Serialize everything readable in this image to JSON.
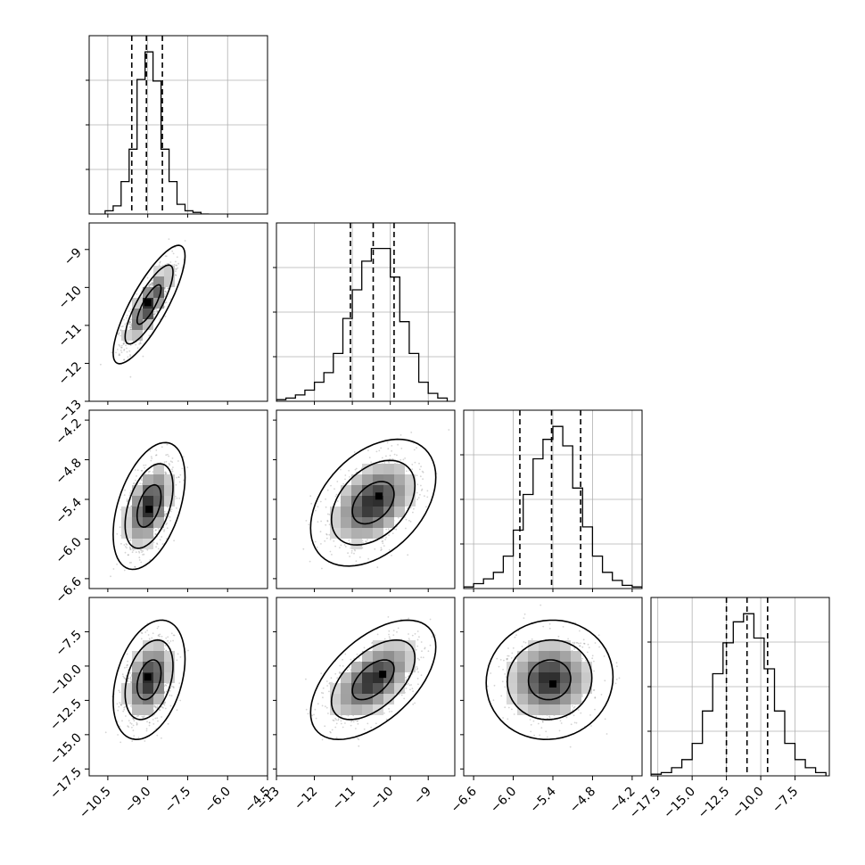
{
  "chart_data": {
    "type": "corner",
    "n_params": 4,
    "grid": true,
    "quantiles": [
      0.16,
      0.5,
      0.84
    ],
    "colors": {
      "line": "#000000",
      "grid": "#b0b0b0",
      "points": "#555555"
    },
    "params": [
      {
        "range": [
          -11.2,
          -4.5
        ],
        "ticks": [
          -10.5,
          -9.0,
          -7.5,
          -6.0,
          -4.5
        ],
        "tick_labels": [
          "−10.5",
          "−9.0",
          "−7.5",
          "−6.0",
          "−4.5"
        ],
        "quantile_values": [
          -9.6,
          -9.05,
          -8.45
        ],
        "hist": {
          "bin_edges": [
            -10.6,
            -10.3,
            -10.0,
            -9.7,
            -9.4,
            -9.1,
            -8.8,
            -8.5,
            -8.2,
            -7.9,
            -7.6,
            -7.3,
            -7.0,
            -6.7
          ],
          "counts": [
            0.02,
            0.05,
            0.2,
            0.4,
            0.83,
            1.0,
            0.82,
            0.4,
            0.2,
            0.06,
            0.02,
            0.01,
            0.0
          ],
          "ylim": [
            0,
            1.1
          ]
        }
      },
      {
        "range": [
          -13.0,
          -8.3
        ],
        "ticks": [
          -13,
          -12,
          -11,
          -10,
          -9
        ],
        "tick_labels": [
          "−13",
          "−12",
          "−11",
          "−10",
          "−9"
        ],
        "quantile_values": [
          -11.05,
          -10.45,
          -9.9
        ],
        "hist": {
          "bin_edges": [
            -13.0,
            -12.75,
            -12.5,
            -12.25,
            -12.0,
            -11.75,
            -11.5,
            -11.25,
            -11.0,
            -10.75,
            -10.5,
            -10.25,
            -10.0,
            -9.75,
            -9.5,
            -9.25,
            -9.0,
            -8.75,
            -8.5
          ],
          "counts": [
            0.01,
            0.02,
            0.04,
            0.07,
            0.12,
            0.18,
            0.3,
            0.52,
            0.7,
            0.88,
            0.96,
            0.96,
            0.78,
            0.5,
            0.3,
            0.12,
            0.05,
            0.02
          ],
          "ylim": [
            0,
            1.12
          ]
        }
      },
      {
        "range": [
          -6.75,
          -4.05
        ],
        "ticks": [
          -6.6,
          -6.0,
          -5.4,
          -4.8,
          -4.2
        ],
        "tick_labels": [
          "−6.6",
          "−6.0",
          "−5.4",
          "−4.8",
          "−4.2"
        ],
        "quantile_values": [
          -5.9,
          -5.42,
          -4.98
        ],
        "hist": {
          "bin_edges": [
            -6.75,
            -6.6,
            -6.45,
            -6.3,
            -6.15,
            -6.0,
            -5.85,
            -5.7,
            -5.55,
            -5.4,
            -5.25,
            -5.1,
            -4.95,
            -4.8,
            -4.65,
            -4.5,
            -4.35,
            -4.2,
            -4.05
          ],
          "counts": [
            0.01,
            0.03,
            0.06,
            0.1,
            0.2,
            0.36,
            0.58,
            0.8,
            0.92,
            1.0,
            0.88,
            0.62,
            0.38,
            0.2,
            0.1,
            0.05,
            0.02,
            0.01
          ],
          "ylim": [
            0,
            1.1
          ]
        }
      },
      {
        "range": [
          -18.0,
          -5.0
        ],
        "ticks": [
          -17.5,
          -15.0,
          -12.5,
          -10.0,
          -7.5
        ],
        "tick_labels": [
          "−17.5",
          "−15.0",
          "−12.5",
          "−10.0",
          "−7.5"
        ],
        "quantile_values": [
          -12.5,
          -11.0,
          -9.5
        ],
        "hist": {
          "bin_edges": [
            -18.0,
            -17.25,
            -16.5,
            -15.75,
            -15.0,
            -14.25,
            -13.5,
            -12.75,
            -12.0,
            -11.25,
            -10.5,
            -9.75,
            -9.0,
            -8.25,
            -7.5,
            -6.75,
            -6.0,
            -5.25
          ],
          "counts": [
            0.01,
            0.02,
            0.05,
            0.1,
            0.2,
            0.4,
            0.63,
            0.82,
            0.95,
            1.0,
            0.85,
            0.66,
            0.4,
            0.2,
            0.1,
            0.05,
            0.02
          ],
          "ylim": [
            0,
            1.1
          ]
        }
      }
    ],
    "pairs": [
      {
        "row": 1,
        "col": 0,
        "mean": [
          -8.95,
          -10.45
        ],
        "sd": [
          0.45,
          0.52
        ],
        "corr": 0.82,
        "peak": [
          -9.0,
          -10.4
        ],
        "rel_contours": [
          1.0,
          2.0,
          3.0
        ]
      },
      {
        "row": 2,
        "col": 0,
        "mean": [
          -8.95,
          -5.5
        ],
        "sd": [
          0.45,
          0.32
        ],
        "corr": 0.45,
        "peak": [
          -8.95,
          -5.55
        ],
        "rel_contours": [
          1.0,
          2.0,
          3.0
        ]
      },
      {
        "row": 2,
        "col": 1,
        "mean": [
          -10.45,
          -5.45
        ],
        "sd": [
          0.55,
          0.32
        ],
        "corr": 0.4,
        "peak": [
          -10.3,
          -5.35
        ],
        "rel_contours": [
          1.0,
          2.0,
          3.0
        ]
      },
      {
        "row": 3,
        "col": 0,
        "mean": [
          -8.95,
          -11.0
        ],
        "sd": [
          0.45,
          1.45
        ],
        "corr": 0.35,
        "peak": [
          -9.0,
          -10.8
        ],
        "rel_contours": [
          1.0,
          2.0,
          3.0
        ]
      },
      {
        "row": 3,
        "col": 1,
        "mean": [
          -10.45,
          -11.0
        ],
        "sd": [
          0.55,
          1.45
        ],
        "corr": 0.55,
        "peak": [
          -10.2,
          -10.6
        ],
        "rel_contours": [
          1.0,
          2.0,
          3.0
        ]
      },
      {
        "row": 3,
        "col": 2,
        "mean": [
          -5.45,
          -11.0
        ],
        "sd": [
          0.32,
          1.45
        ],
        "corr": 0.05,
        "peak": [
          -5.4,
          -11.3
        ],
        "rel_contours": [
          1.0,
          2.0,
          3.0
        ]
      }
    ]
  }
}
